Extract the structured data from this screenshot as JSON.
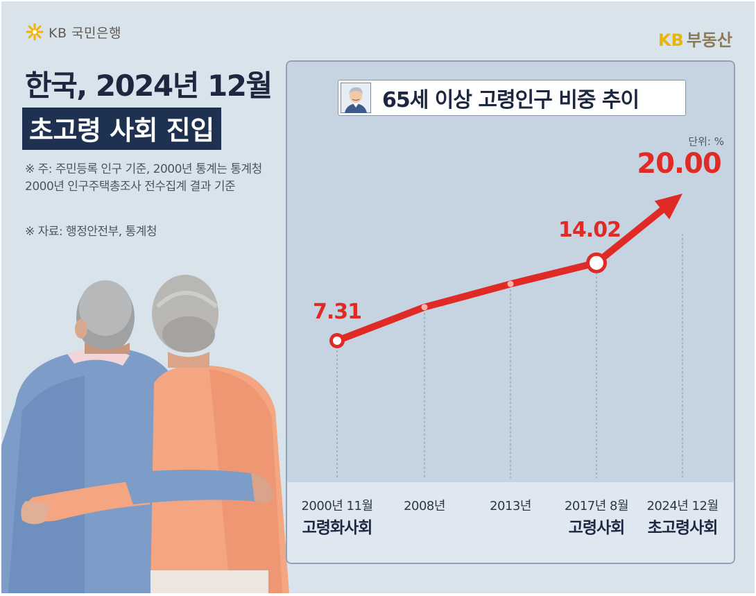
{
  "brand": {
    "bank_name": "KB 국민은행",
    "real_estate": "부동산",
    "real_estate_prefix": "KB"
  },
  "headline": {
    "title": "한국, 2024년 12월",
    "subtitle": "초고령 사회 진입"
  },
  "notes": {
    "basis": "※ 주: 주민등록 인구 기준, 2000년 통계는 통계청 2000년 인구주택총조사 전수집계 결과 기준",
    "source": "※ 자료: 행정안전부, 통계청"
  },
  "colors": {
    "line": "#e02a26",
    "navy": "#1f3150",
    "panel": "#c6d4e2",
    "background": "#d9e3ec",
    "kb_yellow": "#e8b500"
  },
  "chart_data": {
    "type": "line",
    "title": "65세 이상 고령인구 비중 추이",
    "unit_label": "단위: %",
    "categories": [
      "2000년 11월",
      "2008년",
      "2013년",
      "2017년 8월",
      "2024년 12월"
    ],
    "category_sublabels": [
      "고령화사회",
      "",
      "",
      "고령사회",
      "초고령사회"
    ],
    "values": [
      7.31,
      10.2,
      12.2,
      14.02,
      20.0
    ],
    "data_labels": [
      "7.31",
      "",
      "",
      "14.02",
      "20.00"
    ],
    "highlight_points": [
      0,
      3
    ],
    "ylim": [
      0,
      22
    ],
    "grid": false,
    "line_color": "#e02a26"
  }
}
